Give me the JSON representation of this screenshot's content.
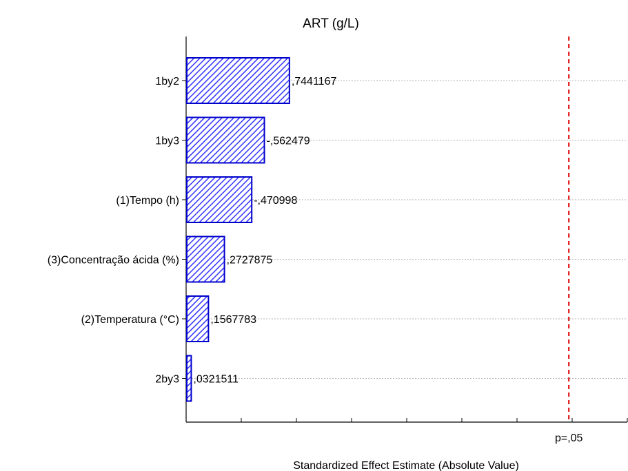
{
  "chart_data": {
    "type": "bar",
    "orientation": "horizontal",
    "title": "ART (g/L)",
    "xlabel": "Standardized Effect Estimate (Absolute Value)",
    "ylabel": "",
    "categories": [
      "1by2",
      "1by3",
      "(1)Tempo (h)",
      "(3)Concentração ácida (%)",
      "(2)Temperatura (°C)",
      "2by3"
    ],
    "values": [
      0.7441167,
      0.562479,
      0.470998,
      0.2727875,
      0.1567783,
      0.0321511
    ],
    "data_labels": [
      ",7441167",
      "-,562479",
      "-,470998",
      ",2727875",
      ",1567783",
      ",0321511"
    ],
    "reference_line": {
      "value": 2.776,
      "label": "p=,05"
    },
    "xlim": [
      0,
      3.2
    ],
    "grid": true,
    "colors": {
      "bar_fill": "#3333ff",
      "bar_stroke": "#0000cc",
      "reference": "#dd0000",
      "grid": "#b0b0b0"
    }
  }
}
